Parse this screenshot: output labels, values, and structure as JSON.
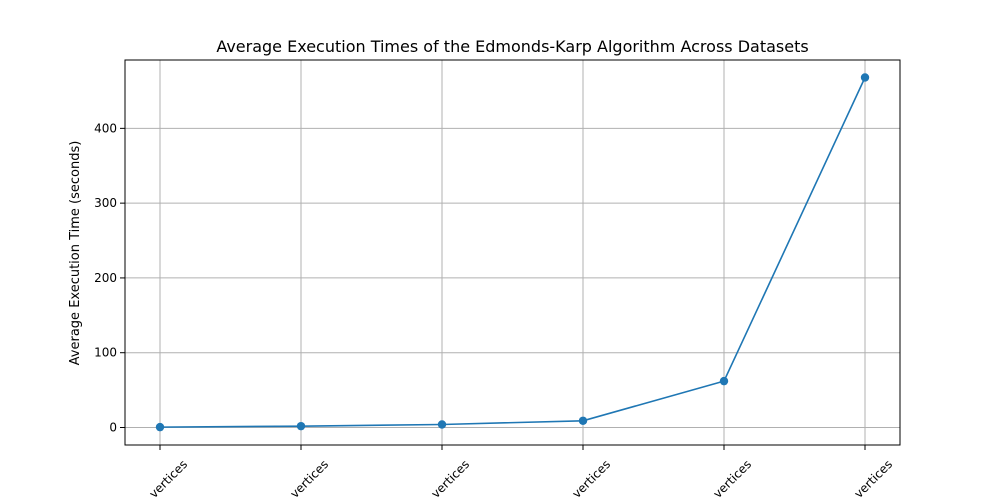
{
  "chart_data": {
    "type": "line",
    "title": "Average Execution Times of the Edmonds-Karp Algorithm Across Datasets",
    "xlabel": "",
    "ylabel": "Average Execution Time (seconds)",
    "categories": [
      "... vertices",
      "... vertices",
      "... vertices",
      "... vertices",
      "... vertices",
      "... vertices"
    ],
    "series": [
      {
        "values": [
          0.5,
          1.8,
          4.0,
          9.0,
          62.0,
          468.0
        ],
        "color": "#1f77b4",
        "marker": "circle"
      }
    ],
    "ylim": [
      -23.4,
      491.4
    ],
    "yticks": [
      0,
      100,
      200,
      300,
      400
    ],
    "grid": true,
    "xtick_rotation": 45
  }
}
